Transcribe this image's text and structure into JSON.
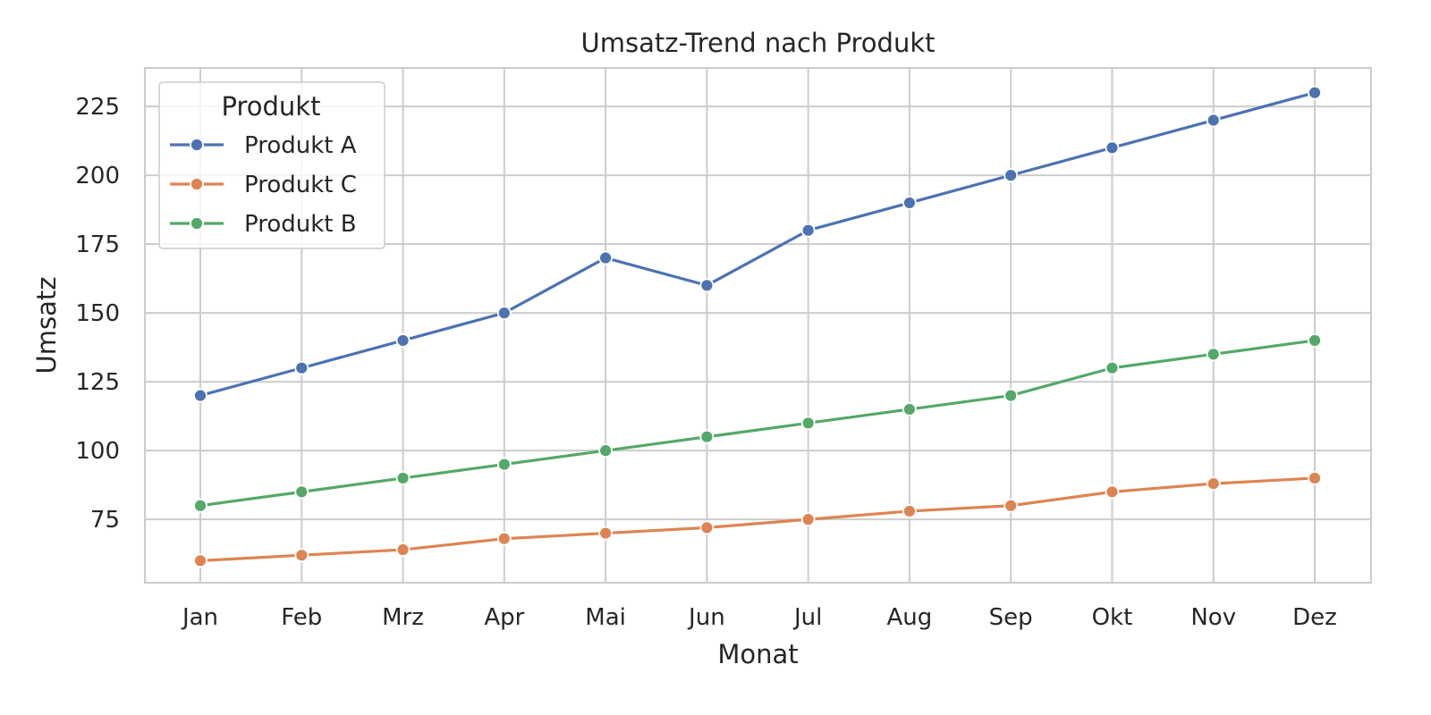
{
  "chart_data": {
    "type": "line",
    "title": "Umsatz-Trend nach Produkt",
    "xlabel": "Monat",
    "ylabel": "Umsatz",
    "categories": [
      "Jan",
      "Feb",
      "Mrz",
      "Apr",
      "Mai",
      "Jun",
      "Jul",
      "Aug",
      "Sep",
      "Okt",
      "Nov",
      "Dez"
    ],
    "ylim": [
      52,
      239
    ],
    "yticks": [
      75,
      100,
      125,
      150,
      175,
      200,
      225
    ],
    "grid": true,
    "legend": {
      "title": "Produkt",
      "placement": "top-left"
    },
    "series": [
      {
        "name": "Produkt A",
        "color": "#4c72b0",
        "values": [
          120,
          130,
          140,
          150,
          170,
          160,
          180,
          190,
          200,
          210,
          220,
          230
        ]
      },
      {
        "name": "Produkt C",
        "color": "#dd8452",
        "values": [
          60,
          62,
          64,
          68,
          70,
          72,
          75,
          78,
          80,
          85,
          88,
          90
        ]
      },
      {
        "name": "Produkt B",
        "color": "#55a868",
        "values": [
          80,
          85,
          90,
          95,
          100,
          105,
          110,
          115,
          120,
          130,
          135,
          140
        ]
      }
    ]
  }
}
